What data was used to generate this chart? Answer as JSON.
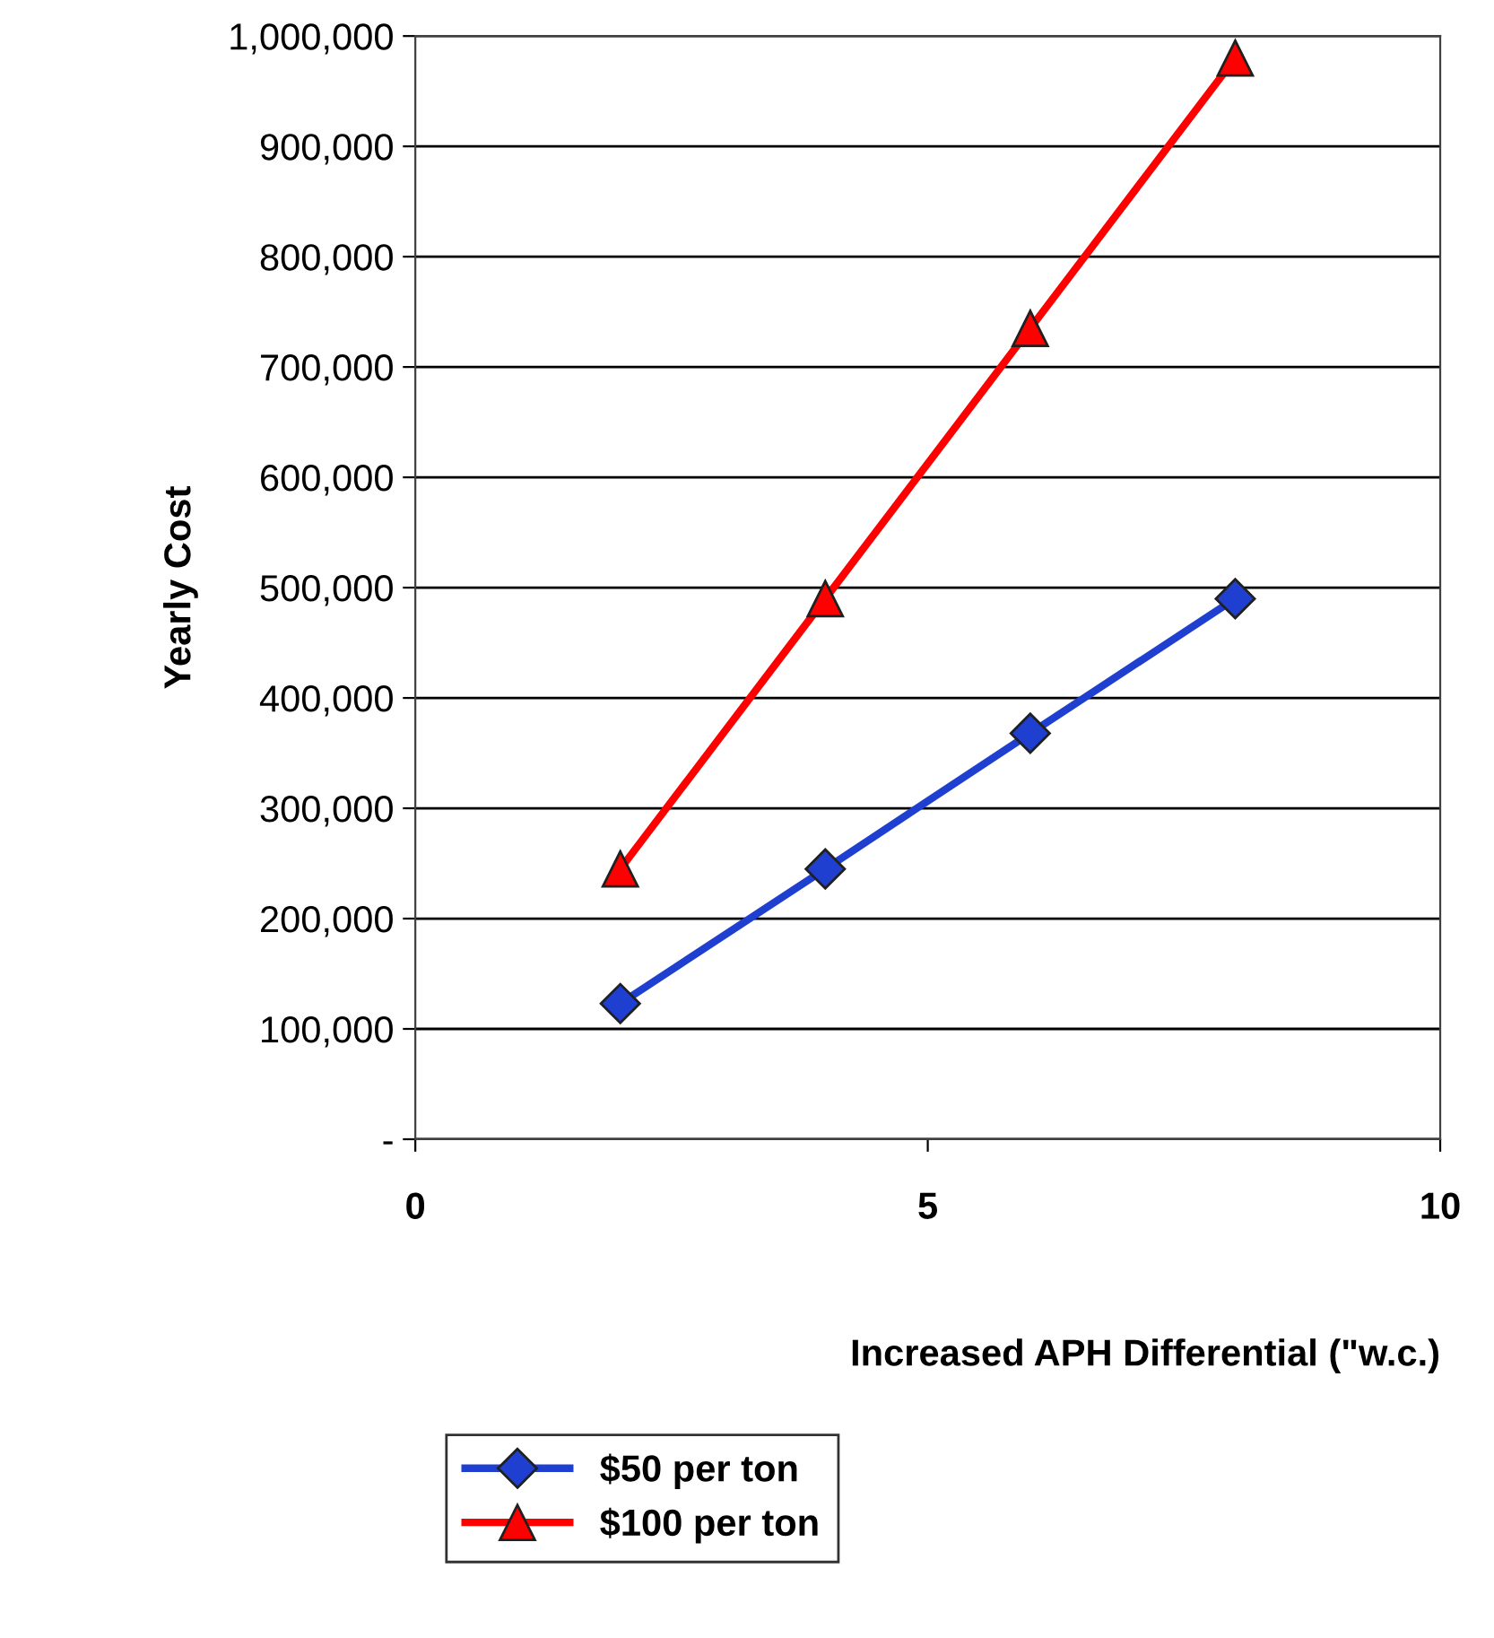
{
  "chart_data": {
    "type": "line",
    "xlabel": "Increased APH Differential (\"w.c.)",
    "ylabel": "Yearly Cost",
    "x": [
      2,
      4,
      6,
      8
    ],
    "series": [
      {
        "name": "$50 per ton",
        "color": "#1f3fd0",
        "marker": "diamond",
        "values": [
          123000,
          245000,
          368000,
          490000
        ]
      },
      {
        "name": "$100 per ton",
        "color": "#ff0000",
        "marker": "triangle",
        "values": [
          245000,
          490000,
          735000,
          980000
        ]
      }
    ],
    "xlim": [
      0,
      10
    ],
    "xticks": [
      0,
      5,
      10
    ],
    "ylim": [
      0,
      1000000
    ],
    "yticks": [
      {
        "value": 0,
        "label": "-"
      },
      {
        "value": 100000,
        "label": "100,000"
      },
      {
        "value": 200000,
        "label": "200,000"
      },
      {
        "value": 300000,
        "label": "300,000"
      },
      {
        "value": 400000,
        "label": "400,000"
      },
      {
        "value": 500000,
        "label": "500,000"
      },
      {
        "value": 600000,
        "label": "600,000"
      },
      {
        "value": 700000,
        "label": "700,000"
      },
      {
        "value": 800000,
        "label": "800,000"
      },
      {
        "value": 900000,
        "label": "900,000"
      },
      {
        "value": 1000000,
        "label": "1,000,000"
      }
    ],
    "grid": "y",
    "legend": "bottom",
    "line_style": "solid"
  }
}
